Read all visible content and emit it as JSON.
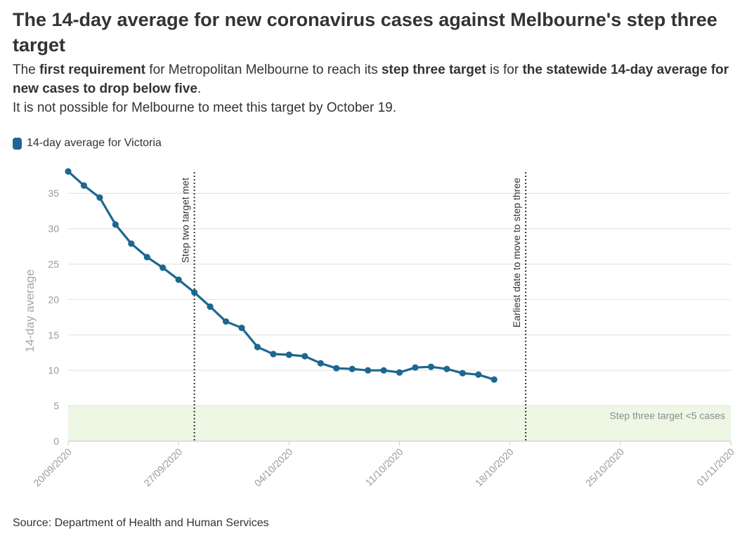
{
  "header": {
    "title": "The 14-day average for new coronavirus cases against Melbourne's step three target",
    "subtitle_line1": [
      {
        "text": "The ",
        "bold": false
      },
      {
        "text": "first requirement",
        "bold": true
      },
      {
        "text": " for Metropolitan Melbourne to reach its ",
        "bold": false
      },
      {
        "text": "step three target",
        "bold": true
      },
      {
        "text": " is for ",
        "bold": false
      },
      {
        "text": "the statewide 14-day average for new cases to drop below five",
        "bold": true
      },
      {
        "text": ".",
        "bold": false
      }
    ],
    "subtitle_line2": "It is not possible for Melbourne to meet this target by October 19."
  },
  "legend": {
    "label": "14-day average for Victoria",
    "color": "#1d6791"
  },
  "source": "Source: Department of Health and Human Services",
  "chart_data": {
    "type": "line",
    "ylabel": "14-day average",
    "ylim": [
      0,
      38
    ],
    "yticks": [
      0,
      5,
      10,
      15,
      20,
      25,
      30,
      35
    ],
    "xlim": [
      "2020-09-20",
      "2020-11-01"
    ],
    "xticks": [
      "2020-09-20",
      "2020-09-27",
      "2020-10-04",
      "2020-10-11",
      "2020-10-18",
      "2020-10-25",
      "2020-11-01"
    ],
    "xtick_labels": [
      "20/09/2020",
      "27/09/2020",
      "04/10/2020",
      "11/10/2020",
      "18/10/2020",
      "25/10/2020",
      "01/11/2020"
    ],
    "series": [
      {
        "name": "14-day average for Victoria",
        "color": "#1d6791",
        "x": [
          "2020-09-20",
          "2020-09-21",
          "2020-09-22",
          "2020-09-23",
          "2020-09-24",
          "2020-09-25",
          "2020-09-26",
          "2020-09-27",
          "2020-09-28",
          "2020-09-29",
          "2020-09-30",
          "2020-10-01",
          "2020-10-02",
          "2020-10-03",
          "2020-10-04",
          "2020-10-05",
          "2020-10-06",
          "2020-10-07",
          "2020-10-08",
          "2020-10-09",
          "2020-10-10",
          "2020-10-11",
          "2020-10-12",
          "2020-10-13",
          "2020-10-14",
          "2020-10-15",
          "2020-10-16",
          "2020-10-17"
        ],
        "values": [
          38.1,
          36.1,
          34.4,
          30.6,
          27.9,
          26.0,
          24.5,
          22.8,
          21.0,
          19.0,
          16.9,
          16.0,
          13.3,
          12.3,
          12.2,
          12.0,
          11.0,
          10.3,
          10.2,
          10.0,
          10.0,
          9.7,
          10.4,
          10.5,
          10.2,
          9.6,
          9.4,
          8.7
        ]
      }
    ],
    "target_band": {
      "from": 0,
      "to": 5,
      "label": "Step three target <5 cases",
      "color": "#eef6e4"
    },
    "annotations": [
      {
        "x": "2020-09-28",
        "label": "Step two target met"
      },
      {
        "x": "2020-10-19",
        "label": "Earliest date to move to step three"
      }
    ],
    "grid": true
  }
}
